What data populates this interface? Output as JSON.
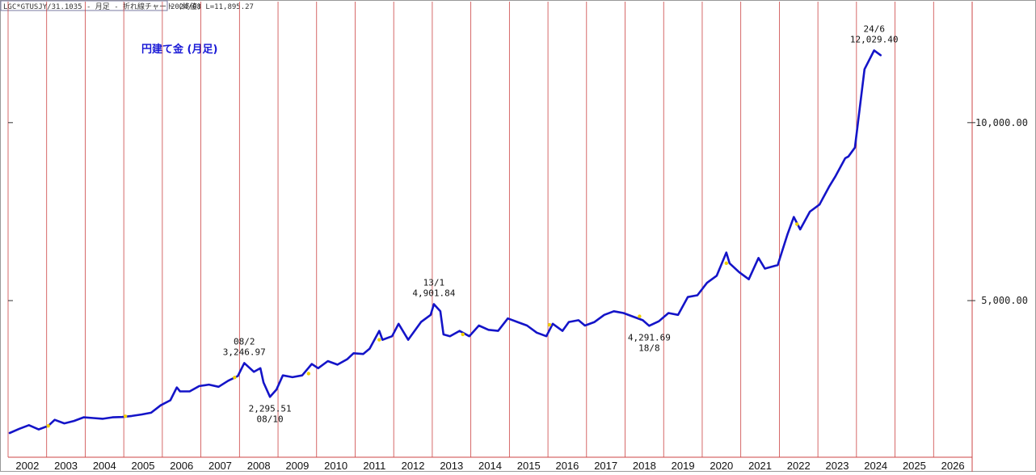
{
  "header": {
    "symbol_box": "LGC*GTUSJY/31.1035 - 月足 - 折れ線チャート (終値)",
    "info": "2024/08 L=11,895.27"
  },
  "chart_data": {
    "type": "line",
    "title": "円建て金 (月足)",
    "xlabel": "",
    "ylabel": "",
    "x_tick_labels": [
      "2002",
      "2003",
      "2004",
      "2005",
      "2006",
      "2007",
      "2008",
      "2009",
      "2010",
      "2011",
      "2012",
      "2013",
      "2014",
      "2015",
      "2016",
      "2017",
      "2018",
      "2019",
      "2020",
      "2021",
      "2022",
      "2023",
      "2024",
      "2025",
      "2026"
    ],
    "y_tick_labels": [
      "5,000.00",
      "10,000.00"
    ],
    "y_ticks": [
      5000,
      10000
    ],
    "xlim": [
      "2002-01",
      "2026-12"
    ],
    "ylim": [
      600,
      13400
    ],
    "grid": "vertical",
    "line_color": "#1414c8",
    "grid_color": "#cc4444",
    "marker_color": "#f0d000",
    "series": [
      {
        "points": [
          [
            "2002-01",
            1280
          ],
          [
            "2002-04",
            1400
          ],
          [
            "2002-07",
            1500
          ],
          [
            "2002-10",
            1380
          ],
          [
            "2003-01",
            1480
          ],
          [
            "2003-03",
            1650
          ],
          [
            "2003-06",
            1550
          ],
          [
            "2003-09",
            1620
          ],
          [
            "2003-12",
            1720
          ],
          [
            "2004-03",
            1700
          ],
          [
            "2004-06",
            1680
          ],
          [
            "2004-09",
            1720
          ],
          [
            "2004-12",
            1730
          ],
          [
            "2005-03",
            1760
          ],
          [
            "2005-06",
            1800
          ],
          [
            "2005-09",
            1850
          ],
          [
            "2005-12",
            2060
          ],
          [
            "2006-03",
            2200
          ],
          [
            "2006-05",
            2560
          ],
          [
            "2006-06",
            2450
          ],
          [
            "2006-09",
            2450
          ],
          [
            "2006-12",
            2600
          ],
          [
            "2007-03",
            2640
          ],
          [
            "2007-06",
            2580
          ],
          [
            "2007-09",
            2750
          ],
          [
            "2007-12",
            2880
          ],
          [
            "2008-02",
            3246.97
          ],
          [
            "2008-05",
            3000
          ],
          [
            "2008-07",
            3100
          ],
          [
            "2008-08",
            2700
          ],
          [
            "2008-10",
            2295.51
          ],
          [
            "2008-12",
            2500
          ],
          [
            "2009-02",
            2900
          ],
          [
            "2009-05",
            2850
          ],
          [
            "2009-08",
            2900
          ],
          [
            "2009-11",
            3220
          ],
          [
            "2010-01",
            3100
          ],
          [
            "2010-04",
            3300
          ],
          [
            "2010-07",
            3200
          ],
          [
            "2010-10",
            3350
          ],
          [
            "2010-12",
            3520
          ],
          [
            "2011-03",
            3500
          ],
          [
            "2011-05",
            3650
          ],
          [
            "2011-08",
            4150
          ],
          [
            "2011-09",
            3900
          ],
          [
            "2011-12",
            4000
          ],
          [
            "2012-02",
            4350
          ],
          [
            "2012-05",
            3900
          ],
          [
            "2012-09",
            4400
          ],
          [
            "2012-12",
            4600
          ],
          [
            "2013-01",
            4901.84
          ],
          [
            "2013-03",
            4700
          ],
          [
            "2013-04",
            4050
          ],
          [
            "2013-06",
            4000
          ],
          [
            "2013-09",
            4150
          ],
          [
            "2013-12",
            4000
          ],
          [
            "2014-03",
            4300
          ],
          [
            "2014-06",
            4180
          ],
          [
            "2014-09",
            4150
          ],
          [
            "2014-12",
            4500
          ],
          [
            "2015-03",
            4400
          ],
          [
            "2015-06",
            4300
          ],
          [
            "2015-09",
            4100
          ],
          [
            "2015-12",
            4000
          ],
          [
            "2016-02",
            4350
          ],
          [
            "2016-05",
            4150
          ],
          [
            "2016-07",
            4400
          ],
          [
            "2016-10",
            4450
          ],
          [
            "2016-12",
            4300
          ],
          [
            "2017-03",
            4400
          ],
          [
            "2017-06",
            4600
          ],
          [
            "2017-09",
            4700
          ],
          [
            "2017-12",
            4650
          ],
          [
            "2018-03",
            4550
          ],
          [
            "2018-06",
            4450
          ],
          [
            "2018-08",
            4291.69
          ],
          [
            "2018-11",
            4420
          ],
          [
            "2019-02",
            4650
          ],
          [
            "2019-05",
            4600
          ],
          [
            "2019-08",
            5100
          ],
          [
            "2019-11",
            5150
          ],
          [
            "2020-02",
            5500
          ],
          [
            "2020-05",
            5700
          ],
          [
            "2020-08",
            6350
          ],
          [
            "2020-09",
            6050
          ],
          [
            "2020-12",
            5800
          ],
          [
            "2021-03",
            5600
          ],
          [
            "2021-06",
            6200
          ],
          [
            "2021-08",
            5900
          ],
          [
            "2021-12",
            6000
          ],
          [
            "2022-03",
            6850
          ],
          [
            "2022-05",
            7350
          ],
          [
            "2022-07",
            7000
          ],
          [
            "2022-10",
            7500
          ],
          [
            "2023-01",
            7700
          ],
          [
            "2023-04",
            8200
          ],
          [
            "2023-06",
            8500
          ],
          [
            "2023-09",
            9000
          ],
          [
            "2023-10",
            9050
          ],
          [
            "2023-12",
            9300
          ],
          [
            "2024-03",
            11500
          ],
          [
            "2024-06",
            12029.4
          ],
          [
            "2024-08",
            11895.27
          ]
        ]
      }
    ],
    "markers": [
      [
        "2003-01",
        1480
      ],
      [
        "2005-01",
        1750
      ],
      [
        "2007-11",
        2840
      ],
      [
        "2009-10",
        2950
      ],
      [
        "2011-08",
        3900
      ],
      [
        "2013-10",
        4050
      ],
      [
        "2016-01",
        4320
      ],
      [
        "2018-05",
        4560
      ],
      [
        "2020-08",
        6050
      ],
      [
        "2022-06",
        7150
      ]
    ],
    "annotations": [
      {
        "date_label": "08/2",
        "value_label": "3,246.97",
        "x": "2008-02",
        "y": 3246.97,
        "position": "above"
      },
      {
        "date_label": "08/10",
        "value_label": "2,295.51",
        "x": "2008-10",
        "y": 2295.51,
        "position": "below"
      },
      {
        "date_label": "13/1",
        "value_label": "4,901.84",
        "x": "2013-01",
        "y": 4901.84,
        "position": "above"
      },
      {
        "date_label": "18/8",
        "value_label": "4,291.69",
        "x": "2018-08",
        "y": 4291.69,
        "position": "below"
      },
      {
        "date_label": "24/6",
        "value_label": "12,029.40",
        "x": "2024-06",
        "y": 12029.4,
        "position": "above"
      }
    ]
  }
}
